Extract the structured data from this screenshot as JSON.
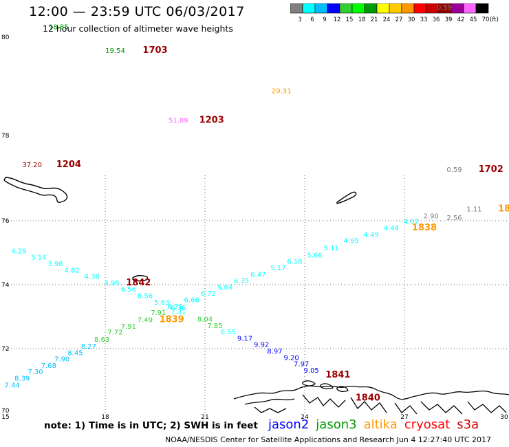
{
  "header": {
    "title": "12:00 — 23:59 UTC 06/03/2017",
    "subtitle": "12 hour collection of altimeter wave heights"
  },
  "colorbar": {
    "unit": "(ft)",
    "ticks": [
      "3",
      "6",
      "9",
      "12",
      "15",
      "18",
      "21",
      "24",
      "27",
      "30",
      "33",
      "36",
      "39",
      "42",
      "45",
      "70"
    ],
    "colors": [
      "#7f7f7f",
      "#00ffff",
      "#00bfff",
      "#0000ff",
      "#33cc33",
      "#00ff00",
      "#009900",
      "#ffff00",
      "#ffcc00",
      "#ff9900",
      "#ff0000",
      "#cc0000",
      "#990000",
      "#990099",
      "#ff66ff",
      "#000000"
    ]
  },
  "axes": {
    "lon_ticks": [
      "15",
      "18",
      "21",
      "24",
      "27",
      "30"
    ],
    "lat_ticks_map": [
      "76",
      "74",
      "72",
      "70"
    ],
    "lat_ticks_top": [
      "80",
      "78"
    ]
  },
  "labels": [
    {
      "text": "18.85",
      "color": "#009900",
      "lon": 16.6,
      "lat": 80.2
    },
    {
      "text": "19.54",
      "color": "#009900",
      "lon": 18.3,
      "lat": 79.72
    },
    {
      "text": "1703",
      "color": "#990000",
      "lon": 19.5,
      "lat": 79.72,
      "big": true
    },
    {
      "text": "0.59",
      "color": "#7f7f7f",
      "lon": 28.2,
      "lat": 80.6
    },
    {
      "text": "29.31",
      "color": "#ff9900",
      "lon": 23.3,
      "lat": 78.9
    },
    {
      "text": "51.89",
      "color": "#ff66ff",
      "lon": 20.2,
      "lat": 78.3
    },
    {
      "text": "1203",
      "color": "#990000",
      "lon": 21.2,
      "lat": 78.3,
      "big": true
    },
    {
      "text": "37.20",
      "color": "#990000",
      "lon": 15.8,
      "lat": 77.4
    },
    {
      "text": "1204",
      "color": "#990000",
      "lon": 16.9,
      "lat": 77.4,
      "big": true
    },
    {
      "text": "0.59",
      "color": "#7f7f7f",
      "lon": 28.5,
      "lat": 77.3
    },
    {
      "text": "1702",
      "color": "#990000",
      "lon": 29.6,
      "lat": 77.3,
      "big": true
    },
    {
      "text": "1.11",
      "color": "#7f7f7f",
      "lon": 29.1,
      "lat": 76.5
    },
    {
      "text": "18",
      "color": "#ff9900",
      "lon": 30.0,
      "lat": 76.5,
      "big": true
    },
    {
      "text": "2.56",
      "color": "#7f7f7f",
      "lon": 28.5,
      "lat": 76.32
    },
    {
      "text": "2.90",
      "color": "#7f7f7f",
      "lon": 27.8,
      "lat": 76.08
    },
    {
      "text": "4.07",
      "color": "#00ffff",
      "lon": 27.2,
      "lat": 75.9
    },
    {
      "text": "1838",
      "color": "#ff9900",
      "lon": 27.6,
      "lat": 75.7,
      "big": true
    },
    {
      "text": "4.44",
      "color": "#00ffff",
      "lon": 26.6,
      "lat": 75.7
    },
    {
      "text": "4.49",
      "color": "#00ffff",
      "lon": 26.0,
      "lat": 75.5
    },
    {
      "text": "4.95",
      "color": "#00ffff",
      "lon": 25.4,
      "lat": 75.3
    },
    {
      "text": "5.11",
      "color": "#00ffff",
      "lon": 24.8,
      "lat": 75.08
    },
    {
      "text": "5.66",
      "color": "#00ffff",
      "lon": 24.3,
      "lat": 74.85
    },
    {
      "text": "6.18",
      "color": "#00ffff",
      "lon": 23.7,
      "lat": 74.66
    },
    {
      "text": "5.17",
      "color": "#00ffff",
      "lon": 23.2,
      "lat": 74.45
    },
    {
      "text": "6.47",
      "color": "#00ffff",
      "lon": 22.6,
      "lat": 74.25
    },
    {
      "text": "6.35",
      "color": "#00ffff",
      "lon": 22.1,
      "lat": 74.05
    },
    {
      "text": "5.84",
      "color": "#00ffff",
      "lon": 21.6,
      "lat": 73.85
    },
    {
      "text": "6.72",
      "color": "#00ffff",
      "lon": 21.1,
      "lat": 73.66
    },
    {
      "text": "6.66",
      "color": "#00ffff",
      "lon": 20.6,
      "lat": 73.45
    },
    {
      "text": "6.70",
      "color": "#00ffff",
      "lon": 20.1,
      "lat": 73.25
    },
    {
      "text": "7.31",
      "color": "#00ffff",
      "lon": 20.2,
      "lat": 73.08
    },
    {
      "text": "7.91",
      "color": "#33cc33",
      "lon": 19.6,
      "lat": 73.05
    },
    {
      "text": "1839",
      "color": "#ff9900",
      "lon": 20.0,
      "lat": 72.83,
      "big": true
    },
    {
      "text": "7.49",
      "color": "#33cc33",
      "lon": 19.2,
      "lat": 72.83
    },
    {
      "text": "7.91",
      "color": "#33cc33",
      "lon": 18.7,
      "lat": 72.62
    },
    {
      "text": "7.72",
      "color": "#33cc33",
      "lon": 18.3,
      "lat": 72.44
    },
    {
      "text": "8.63",
      "color": "#33cc33",
      "lon": 17.9,
      "lat": 72.22
    },
    {
      "text": "8.27",
      "color": "#00bfff",
      "lon": 17.5,
      "lat": 72.0
    },
    {
      "text": "8.45",
      "color": "#00bfff",
      "lon": 17.1,
      "lat": 71.8
    },
    {
      "text": "7.90",
      "color": "#00bfff",
      "lon": 16.7,
      "lat": 71.6
    },
    {
      "text": "7.68",
      "color": "#00bfff",
      "lon": 16.3,
      "lat": 71.4
    },
    {
      "text": "7.30",
      "color": "#00bfff",
      "lon": 15.9,
      "lat": 71.2
    },
    {
      "text": "8.39",
      "color": "#00bfff",
      "lon": 15.5,
      "lat": 71.0
    },
    {
      "text": "7.44",
      "color": "#00bfff",
      "lon": 15.2,
      "lat": 70.78
    },
    {
      "text": "4.29",
      "color": "#00ffff",
      "lon": 15.4,
      "lat": 74.98
    },
    {
      "text": "5.14",
      "color": "#00ffff",
      "lon": 16.0,
      "lat": 74.78
    },
    {
      "text": "3.98",
      "color": "#00ffff",
      "lon": 16.5,
      "lat": 74.58
    },
    {
      "text": "4.62",
      "color": "#00ffff",
      "lon": 17.0,
      "lat": 74.38
    },
    {
      "text": "4.38",
      "color": "#00ffff",
      "lon": 17.6,
      "lat": 74.18
    },
    {
      "text": "4.95",
      "color": "#00ffff",
      "lon": 18.2,
      "lat": 73.98
    },
    {
      "text": "1842",
      "color": "#990000",
      "lon": 19.0,
      "lat": 73.98,
      "big": true
    },
    {
      "text": "6.56",
      "color": "#00ffff",
      "lon": 18.7,
      "lat": 73.78
    },
    {
      "text": "6.56",
      "color": "#00ffff",
      "lon": 19.2,
      "lat": 73.58
    },
    {
      "text": "5.63",
      "color": "#00ffff",
      "lon": 19.7,
      "lat": 73.38
    },
    {
      "text": "6.36",
      "color": "#00ffff",
      "lon": 20.2,
      "lat": 73.2
    },
    {
      "text": "8.04",
      "color": "#33cc33",
      "lon": 21.0,
      "lat": 72.85
    },
    {
      "text": "7.85",
      "color": "#33cc33",
      "lon": 21.3,
      "lat": 72.65
    },
    {
      "text": "6.55",
      "color": "#00ffff",
      "lon": 21.7,
      "lat": 72.45
    },
    {
      "text": "9.17",
      "color": "#0000ff",
      "lon": 22.2,
      "lat": 72.25
    },
    {
      "text": "9.92",
      "color": "#0000ff",
      "lon": 22.7,
      "lat": 72.05
    },
    {
      "text": "8.97",
      "color": "#0000ff",
      "lon": 23.1,
      "lat": 71.85
    },
    {
      "text": "9.20",
      "color": "#0000ff",
      "lon": 23.6,
      "lat": 71.65
    },
    {
      "text": "7.97",
      "color": "#0000ff",
      "lon": 23.9,
      "lat": 71.45
    },
    {
      "text": "9.05",
      "color": "#0000ff",
      "lon": 24.2,
      "lat": 71.25
    },
    {
      "text": "1841",
      "color": "#990000",
      "lon": 25.0,
      "lat": 71.1,
      "big": true
    },
    {
      "text": "1840",
      "color": "#990000",
      "lon": 25.9,
      "lat": 70.38,
      "big": true
    }
  ],
  "footer": {
    "note": "note:  1) Time is in UTC;  2) SWH is in feet",
    "credit": "NOAA/NESDIS Center for Satellite Applications and Research    Jun  4 12:27:40 UTC 2017",
    "satellites": [
      {
        "name": "jason2",
        "color": "#0000ff"
      },
      {
        "name": "jason3",
        "color": "#009900"
      },
      {
        "name": "altika",
        "color": "#ff9900"
      },
      {
        "name": "cryosat",
        "color": "#ff0000"
      },
      {
        "name": "s3a",
        "color": "#cc0000"
      }
    ]
  }
}
